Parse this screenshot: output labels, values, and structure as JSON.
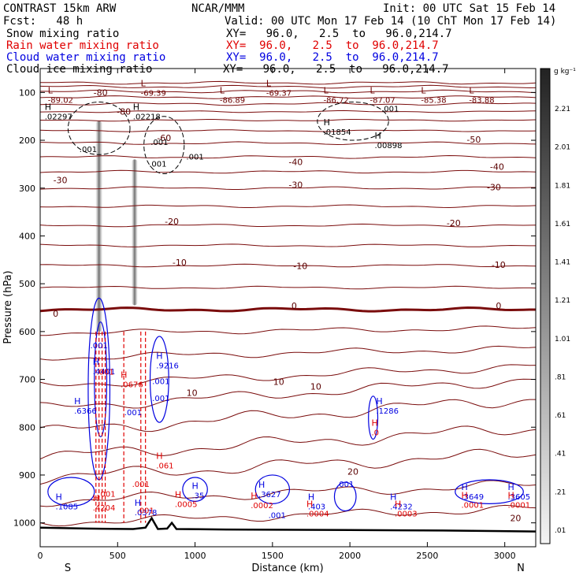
{
  "header": {
    "model": "CONTRAST 15km ARW",
    "org": "NCAR/MMM",
    "init": "Init: 00 UTC Sat 15 Feb 14",
    "fcst": "Fcst:   48 h",
    "valid": "Valid: 00 UTC Mon 17 Feb 14 (10 ChT Mon 17 Feb 14)",
    "fields": [
      {
        "name": "Snow mixing ratio",
        "xy": "XY=   96.0,   2.5  to   96.0,214.7",
        "color": "#000000"
      },
      {
        "name": "Rain water mixing ratio",
        "xy": "XY=  96.0,   2.5  to  96.0,214.7",
        "color": "#e00000"
      },
      {
        "name": "Cloud water mixing ratio",
        "xy": "XY=  96.0,   2.5  to  96.0,214.7",
        "color": "#0000e0"
      },
      {
        "name": "Cloud ice mixing ratio",
        "xy": "XY=   96.0,   2.5  to   96.0,214.7",
        "color": "#000000"
      }
    ]
  },
  "chart_data": {
    "type": "contour",
    "xlabel": "Distance (km)",
    "ylabel": "Pressure (hPa)",
    "xlim": [
      0,
      3200
    ],
    "ylim": [
      1050,
      50
    ],
    "x_ticks": [
      0,
      500,
      1000,
      1500,
      2000,
      2500,
      3000
    ],
    "y_ticks": [
      100,
      200,
      300,
      400,
      500,
      600,
      700,
      800,
      900,
      1000
    ],
    "x_end_labels": {
      "left": "S",
      "right": "N"
    },
    "colorbar": {
      "units": "g kg⁻¹",
      "labels": [
        "2.21",
        "2.01",
        "1.81",
        "1.61",
        "1.41",
        "1.21",
        "1.01",
        ".81",
        ".61",
        ".41",
        ".21",
        ".01"
      ]
    },
    "isotherm_labels": [
      {
        "text": "-80",
        "x": 390,
        "p": 100
      },
      {
        "text": "-80",
        "x": 540,
        "p": 140
      },
      {
        "text": "-60",
        "x": 800,
        "p": 195
      },
      {
        "text": "-50",
        "x": 2800,
        "p": 198
      },
      {
        "text": "-40",
        "x": 1650,
        "p": 245
      },
      {
        "text": "-40",
        "x": 2950,
        "p": 255
      },
      {
        "text": "-30",
        "x": 130,
        "p": 283
      },
      {
        "text": "-30",
        "x": 1650,
        "p": 293
      },
      {
        "text": "-30",
        "x": 2930,
        "p": 298
      },
      {
        "text": "-20",
        "x": 850,
        "p": 370
      },
      {
        "text": "-20",
        "x": 2670,
        "p": 373
      },
      {
        "text": "-10",
        "x": 900,
        "p": 455
      },
      {
        "text": "-10",
        "x": 1680,
        "p": 463
      },
      {
        "text": "-10",
        "x": 2960,
        "p": 460
      },
      {
        "text": "0",
        "x": 100,
        "p": 562
      },
      {
        "text": "0",
        "x": 1640,
        "p": 546
      },
      {
        "text": "0",
        "x": 2960,
        "p": 546
      },
      {
        "text": "10",
        "x": 980,
        "p": 728
      },
      {
        "text": "10",
        "x": 1540,
        "p": 705
      },
      {
        "text": "10",
        "x": 1780,
        "p": 715
      },
      {
        "text": "20",
        "x": 2020,
        "p": 893
      },
      {
        "text": "20",
        "x": 3070,
        "p": 990
      }
    ],
    "extrema_labels": [
      {
        "type": "L",
        "value": "-89.02",
        "x": 90,
        "p": 105,
        "color": "#6b0000"
      },
      {
        "type": "L",
        "value": "-69.39",
        "x": 690,
        "p": 90,
        "color": "#6b0000"
      },
      {
        "type": "L",
        "value": "-69.37",
        "x": 1500,
        "p": 90,
        "color": "#6b0000"
      },
      {
        "type": "L",
        "value": "-86.89",
        "x": 1200,
        "p": 105,
        "color": "#6b0000"
      },
      {
        "type": "L",
        "value": "-86.72",
        "x": 1870,
        "p": 105,
        "color": "#6b0000"
      },
      {
        "type": "L",
        "value": "-87.07",
        "x": 2170,
        "p": 105,
        "color": "#6b0000"
      },
      {
        "type": "L",
        "value": "-85.38",
        "x": 2500,
        "p": 105,
        "color": "#6b0000"
      },
      {
        "type": "L",
        "value": "-83.88",
        "x": 2810,
        "p": 105,
        "color": "#6b0000"
      },
      {
        "type": "H",
        "value": ".02297",
        "x": 70,
        "p": 140,
        "color": "#000000"
      },
      {
        "type": "H",
        "value": ".02218",
        "x": 640,
        "p": 140,
        "color": "#000000"
      },
      {
        "type": "H",
        "value": ".01854",
        "x": 1870,
        "p": 172,
        "color": "#000000"
      },
      {
        "type": "H",
        "value": ".00898",
        "x": 2200,
        "p": 200,
        "color": "#000000"
      },
      {
        "type": "H",
        "value": ".4401",
        "x": 380,
        "p": 673,
        "color": "#0000e0"
      },
      {
        "type": "H",
        "value": ".6366",
        "x": 260,
        "p": 755,
        "color": "#0000e0"
      },
      {
        "type": "H",
        "value": ".9216",
        "x": 790,
        "p": 660,
        "color": "#0000e0"
      },
      {
        "type": "H",
        "value": ".0676",
        "x": 560,
        "p": 700,
        "color": "#e00000"
      },
      {
        "type": "H",
        "value": ".1286",
        "x": 2210,
        "p": 755,
        "color": "#0000e0"
      },
      {
        "type": "H",
        "value": ".0",
        "x": 2180,
        "p": 800,
        "color": "#e00000"
      },
      {
        "type": "H",
        "value": ".061",
        "x": 790,
        "p": 870,
        "color": "#e00000"
      },
      {
        "type": "H",
        "value": ".1085",
        "x": 140,
        "p": 955,
        "color": "#0000e0"
      },
      {
        "type": "H",
        "value": ".4204",
        "x": 380,
        "p": 958,
        "color": "#e00000"
      },
      {
        "type": "H",
        "value": ".0378",
        "x": 650,
        "p": 968,
        "color": "#0000e0"
      },
      {
        "type": "H",
        "value": ".0005",
        "x": 910,
        "p": 950,
        "color": "#e00000"
      },
      {
        "type": "H",
        "value": ".35",
        "x": 1020,
        "p": 932,
        "color": "#0000e0"
      },
      {
        "type": "H",
        "value": ".3627",
        "x": 1450,
        "p": 930,
        "color": "#0000e0"
      },
      {
        "type": "H",
        "value": ".0002",
        "x": 1400,
        "p": 953,
        "color": "#e00000"
      },
      {
        "type": "H",
        "value": ".403",
        "x": 1770,
        "p": 955,
        "color": "#0000e0"
      },
      {
        "type": "H",
        "value": ".0004",
        "x": 1760,
        "p": 970,
        "color": "#e00000"
      },
      {
        "type": "H",
        "value": ".4232",
        "x": 2300,
        "p": 955,
        "color": "#0000e0"
      },
      {
        "type": "H",
        "value": ".0003",
        "x": 2330,
        "p": 970,
        "color": "#e00000"
      },
      {
        "type": "H",
        "value": ".3649",
        "x": 2760,
        "p": 935,
        "color": "#0000e0"
      },
      {
        "type": "H",
        "value": ".0001",
        "x": 2760,
        "p": 952,
        "color": "#e00000"
      },
      {
        "type": "H",
        "value": ".3605",
        "x": 3060,
        "p": 935,
        "color": "#0000e0"
      },
      {
        "type": "H",
        "value": ".0001",
        "x": 3060,
        "p": 952,
        "color": "#e00000"
      }
    ],
    "small_labels": [
      {
        "text": ".001",
        "x": 310,
        "p": 225,
        "color": "#000000"
      },
      {
        "text": ".001",
        "x": 770,
        "p": 210,
        "color": "#000000"
      },
      {
        "text": ".001",
        "x": 1000,
        "p": 240,
        "color": "#000000"
      },
      {
        "text": ".001",
        "x": 760,
        "p": 255,
        "color": "#000000"
      },
      {
        "text": ".001",
        "x": 2260,
        "p": 140,
        "color": "#000000"
      },
      {
        "text": ".001",
        "x": 380,
        "p": 635,
        "color": "#0000e0"
      },
      {
        "text": ".001",
        "x": 420,
        "p": 690,
        "color": "#e00000"
      },
      {
        "text": ".001",
        "x": 780,
        "p": 710,
        "color": "#0000e0"
      },
      {
        "text": ".001",
        "x": 780,
        "p": 745,
        "color": "#0000e0"
      },
      {
        "text": ".001",
        "x": 600,
        "p": 775,
        "color": "#0000e0"
      },
      {
        "text": ".001",
        "x": 650,
        "p": 925,
        "color": "#e00000"
      },
      {
        "text": ".001",
        "x": 680,
        "p": 980,
        "color": "#e00000"
      },
      {
        "text": ".001",
        "x": 1530,
        "p": 990,
        "color": "#0000e0"
      },
      {
        "text": ".001",
        "x": 1970,
        "p": 925,
        "color": "#0000e0"
      },
      {
        "text": ".001",
        "x": 430,
        "p": 945,
        "color": "#e00000"
      }
    ],
    "terrain_km_hpa": [
      [
        0,
        1010
      ],
      [
        300,
        1012
      ],
      [
        600,
        1013
      ],
      [
        680,
        1010
      ],
      [
        720,
        990
      ],
      [
        760,
        1013
      ],
      [
        820,
        1012
      ],
      [
        850,
        1000
      ],
      [
        880,
        1013
      ],
      [
        1200,
        1014
      ],
      [
        2000,
        1015
      ],
      [
        2600,
        1016
      ],
      [
        3200,
        1018
      ]
    ],
    "isotherms": [
      {
        "base": 1000,
        "amp": 10,
        "trend": 30
      },
      {
        "base": 955,
        "amp": 12,
        "trend": 35
      },
      {
        "base": 905,
        "amp": 15,
        "trend": 50
      },
      {
        "base": 862,
        "amp": 15,
        "trend": 60
      },
      {
        "base": 810,
        "amp": 15,
        "trend": 70
      },
      {
        "base": 760,
        "amp": 12,
        "trend": 60
      },
      {
        "base": 712,
        "amp": 10,
        "trend": 40
      },
      {
        "base": 655,
        "amp": 8,
        "trend": 20
      },
      {
        "base": 603,
        "amp": 6,
        "trend": 10
      },
      {
        "base": 554,
        "amp": 4,
        "trend": 0,
        "bold": true
      },
      {
        "base": 508,
        "amp": 3,
        "trend": 0
      },
      {
        "base": 462,
        "amp": 3,
        "trend": 0
      },
      {
        "base": 420,
        "amp": 3,
        "trend": 0
      },
      {
        "base": 378,
        "amp": 3,
        "trend": 0
      },
      {
        "base": 338,
        "amp": 3,
        "trend": 0
      },
      {
        "base": 300,
        "amp": 3,
        "trend": 0
      },
      {
        "base": 266,
        "amp": 3,
        "trend": 0
      },
      {
        "base": 235,
        "amp": 3,
        "trend": 0
      },
      {
        "base": 206,
        "amp": 3,
        "trend": 0
      },
      {
        "base": 180,
        "amp": 2,
        "trend": 0
      },
      {
        "base": 158,
        "amp": 2,
        "trend": 0
      },
      {
        "base": 140,
        "amp": 2,
        "trend": 0
      },
      {
        "base": 124,
        "amp": 3,
        "trend": 0
      },
      {
        "base": 110,
        "amp": 3,
        "trend": 0
      },
      {
        "base": 98,
        "amp": 3,
        "trend": 0
      },
      {
        "base": 88,
        "amp": 3,
        "trend": 0
      },
      {
        "base": 80,
        "amp": 3,
        "trend": 0
      }
    ],
    "snow_columns": [
      {
        "x": 380,
        "p_top": 160,
        "p_bot": 600,
        "width_km": 45
      },
      {
        "x": 610,
        "p_top": 240,
        "p_bot": 545,
        "width_km": 40
      }
    ]
  }
}
